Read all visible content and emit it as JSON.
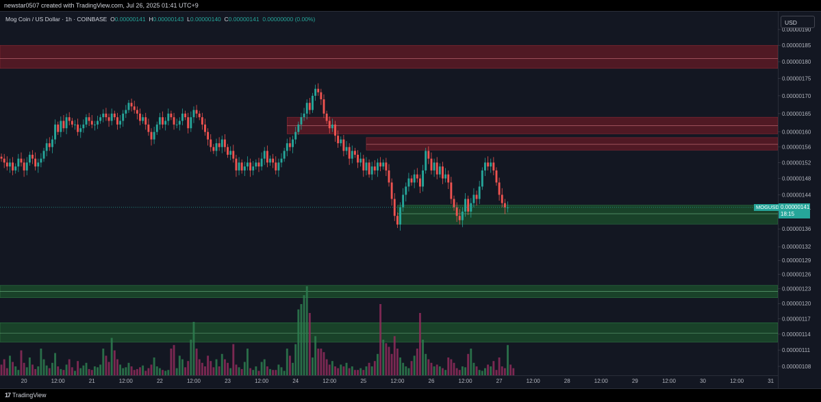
{
  "attribution": "newstar0507 created with TradingView.com, Jul 26, 2025 01:41 UTC+9",
  "legend": {
    "title": "Mog Coin / US Dollar · 1h · COINBASE",
    "o_label": "O",
    "o": "0.00000141",
    "h_label": "H",
    "h": "0.00000143",
    "l_label": "L",
    "l": "0.00000140",
    "c_label": "C",
    "c": "0.00000141",
    "change": "0.00000000 (0.00%)"
  },
  "currency": "USD",
  "price_tag": {
    "symbol": "MOGUSD",
    "price": "0.00000141",
    "countdown": "18:15"
  },
  "footer": {
    "logo_mark": "17",
    "brand": "TradingView"
  },
  "colors": {
    "up": "#26a69a",
    "down": "#ef5350",
    "background": "#131722",
    "supply_zone": "#5c1a24",
    "demand_zone": "#1b4a2a"
  },
  "chart_data": {
    "type": "candlestick",
    "symbol": "MOGUSD",
    "timeframe": "1h",
    "y_axis": {
      "ticks": [
        "0.00000190",
        "0.00000185",
        "0.00000180",
        "0.00000175",
        "0.00000170",
        "0.00000165",
        "0.00000160",
        "0.00000156",
        "0.00000152",
        "0.00000148",
        "0.00000144",
        "0.00000141",
        "0.00000136",
        "0.00000132",
        "0.00000129",
        "0.00000126",
        "0.00000123",
        "0.00000120",
        "0.00000117",
        "0.00000114",
        "0.00000111",
        "0.00000108"
      ],
      "tick_values": [
        190,
        185,
        180,
        175,
        170,
        165,
        160,
        156,
        152,
        148,
        144,
        141,
        136,
        132,
        129,
        126,
        123,
        120,
        117,
        114,
        111,
        108
      ],
      "scale": "log"
    },
    "x_axis": {
      "ticks": [
        "20",
        "12:00",
        "21",
        "12:00",
        "22",
        "12:00",
        "23",
        "12:00",
        "24",
        "12:00",
        "25",
        "12:00",
        "26",
        "12:00",
        "27",
        "12:00",
        "28",
        "12:00",
        "29",
        "12:00",
        "30",
        "12:00",
        "31"
      ],
      "tick_hours": [
        0,
        12,
        24,
        36,
        48,
        60,
        72,
        84,
        96,
        108,
        120,
        132,
        144,
        156,
        168,
        180,
        192,
        204,
        216,
        228,
        240,
        252,
        264
      ],
      "x0_hours": -8.5,
      "x1_hours": 266.5
    },
    "zones": [
      {
        "type": "supply",
        "start_hour": -8.5,
        "top": 1.85,
        "bottom": 1.78,
        "mid": 1.81
      },
      {
        "type": "supply",
        "start_hour": 93,
        "top": 1.64,
        "bottom": 1.595,
        "mid": 1.617
      },
      {
        "type": "supply",
        "start_hour": 121,
        "top": 1.585,
        "bottom": 1.552,
        "mid": 1.567
      },
      {
        "type": "demand",
        "start_hour": 132,
        "top": 1.415,
        "bottom": 1.371,
        "mid": 1.395
      },
      {
        "type": "demand",
        "start_hour": -8.5,
        "top": 1.237,
        "bottom": 1.212,
        "mid": 1.225
      },
      {
        "type": "demand",
        "start_hour": -8.5,
        "top": 1.162,
        "bottom": 1.125,
        "mid": 1.142
      }
    ],
    "price_line": 1.41,
    "candles_start_hour": -8,
    "candle_step_hours": 1,
    "closes": [
      1.53,
      1.52,
      1.51,
      1.52,
      1.5,
      1.51,
      1.53,
      1.52,
      1.5,
      1.52,
      1.54,
      1.53,
      1.51,
      1.52,
      1.53,
      1.55,
      1.57,
      1.56,
      1.58,
      1.62,
      1.6,
      1.63,
      1.61,
      1.64,
      1.63,
      1.62,
      1.62,
      1.6,
      1.61,
      1.62,
      1.64,
      1.63,
      1.62,
      1.62,
      1.63,
      1.64,
      1.65,
      1.64,
      1.63,
      1.65,
      1.64,
      1.62,
      1.63,
      1.65,
      1.66,
      1.68,
      1.67,
      1.66,
      1.65,
      1.63,
      1.64,
      1.62,
      1.6,
      1.58,
      1.6,
      1.62,
      1.64,
      1.62,
      1.63,
      1.65,
      1.64,
      1.62,
      1.62,
      1.63,
      1.65,
      1.64,
      1.61,
      1.64,
      1.66,
      1.65,
      1.64,
      1.62,
      1.6,
      1.58,
      1.56,
      1.55,
      1.57,
      1.56,
      1.58,
      1.56,
      1.54,
      1.55,
      1.53,
      1.5,
      1.52,
      1.5,
      1.51,
      1.52,
      1.5,
      1.51,
      1.52,
      1.51,
      1.53,
      1.55,
      1.52,
      1.53,
      1.52,
      1.5,
      1.52,
      1.53,
      1.55,
      1.57,
      1.56,
      1.58,
      1.6,
      1.62,
      1.64,
      1.65,
      1.68,
      1.66,
      1.7,
      1.72,
      1.71,
      1.69,
      1.65,
      1.63,
      1.61,
      1.62,
      1.59,
      1.57,
      1.58,
      1.55,
      1.56,
      1.53,
      1.55,
      1.54,
      1.52,
      1.53,
      1.5,
      1.52,
      1.49,
      1.51,
      1.5,
      1.52,
      1.51,
      1.52,
      1.5,
      1.47,
      1.43,
      1.39,
      1.37,
      1.41,
      1.44,
      1.46,
      1.48,
      1.47,
      1.49,
      1.48,
      1.46,
      1.5,
      1.55,
      1.53,
      1.5,
      1.52,
      1.49,
      1.51,
      1.48,
      1.49,
      1.47,
      1.43,
      1.41,
      1.39,
      1.38,
      1.4,
      1.43,
      1.4,
      1.42,
      1.44,
      1.43,
      1.46,
      1.5,
      1.52,
      1.51,
      1.52,
      1.5,
      1.47,
      1.44,
      1.42,
      1.41,
      1.41
    ],
    "volumes": [
      0.12,
      0.18,
      0.08,
      0.22,
      0.15,
      0.1,
      0.06,
      0.28,
      0.14,
      0.09,
      0.2,
      0.12,
      0.07,
      0.1,
      0.3,
      0.18,
      0.11,
      0.08,
      0.14,
      0.25,
      0.1,
      0.07,
      0.06,
      0.12,
      0.18,
      0.09,
      0.05,
      0.16,
      0.08,
      0.11,
      0.14,
      0.07,
      0.06,
      0.1,
      0.09,
      0.12,
      0.3,
      0.22,
      0.15,
      0.42,
      0.28,
      0.18,
      0.12,
      0.08,
      0.09,
      0.14,
      0.1,
      0.06,
      0.07,
      0.09,
      0.11,
      0.05,
      0.08,
      0.12,
      0.2,
      0.1,
      0.08,
      0.06,
      0.05,
      0.06,
      0.3,
      0.34,
      0.08,
      0.22,
      0.18,
      0.09,
      0.16,
      0.4,
      0.6,
      0.3,
      0.18,
      0.14,
      0.1,
      0.22,
      0.16,
      0.09,
      0.18,
      0.1,
      0.24,
      0.18,
      0.14,
      0.08,
      0.35,
      0.12,
      0.09,
      0.07,
      0.15,
      0.3,
      0.08,
      0.06,
      0.1,
      0.05,
      0.15,
      0.18,
      0.1,
      0.07,
      0.06,
      0.06,
      0.12,
      0.09,
      0.05,
      0.3,
      0.22,
      0.14,
      0.35,
      0.74,
      0.8,
      0.9,
      1.0,
      0.7,
      0.2,
      0.44,
      0.3,
      0.3,
      0.26,
      0.18,
      0.12,
      0.16,
      0.1,
      0.08,
      0.12,
      0.1,
      0.14,
      0.08,
      0.1,
      0.06,
      0.06,
      0.08,
      0.06,
      0.1,
      0.14,
      0.1,
      0.16,
      0.24,
      0.8,
      0.4,
      0.36,
      0.32,
      0.24,
      0.44,
      0.3,
      0.2,
      0.14,
      0.1,
      0.08,
      0.16,
      0.22,
      0.3,
      0.7,
      0.4,
      0.24,
      0.18,
      0.14,
      0.1,
      0.12,
      0.1,
      0.08,
      0.06,
      0.2,
      0.18,
      0.14,
      0.08,
      0.06,
      0.1,
      0.09,
      0.24,
      0.3,
      0.14,
      0.1,
      0.06,
      0.05,
      0.08,
      0.12,
      0.1,
      0.16,
      0.06,
      0.2,
      0.1,
      0.08,
      0.34,
      0.12,
      0.08
    ],
    "volume_panel": {
      "scale_max": 1.0
    }
  }
}
